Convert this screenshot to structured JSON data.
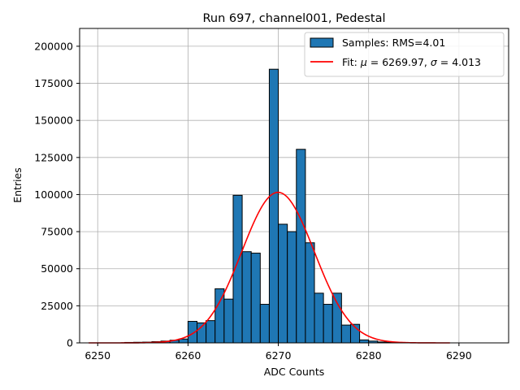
{
  "chart_data": {
    "type": "bar",
    "title": "Run 697, channel001, Pedestal",
    "xlabel": "ADC Counts",
    "ylabel": "Entries",
    "xlim": [
      6248,
      6295.5
    ],
    "ylim": [
      0,
      212000
    ],
    "xticks": [
      6250,
      6260,
      6270,
      6280,
      6290
    ],
    "yticks": [
      0,
      25000,
      50000,
      75000,
      100000,
      125000,
      150000,
      175000,
      200000
    ],
    "grid": true,
    "legend_position": "top-right",
    "bar_color": "#1f77b4",
    "fit_color": "#ff0000",
    "bin_width": 1,
    "series": [
      {
        "name": "Samples: RMS=4.01",
        "kind": "histogram",
        "bins": [
          {
            "x": 6253,
            "value": 300
          },
          {
            "x": 6254,
            "value": 400
          },
          {
            "x": 6255,
            "value": 500
          },
          {
            "x": 6256,
            "value": 800
          },
          {
            "x": 6257,
            "value": 1200
          },
          {
            "x": 6258,
            "value": 1800
          },
          {
            "x": 6259,
            "value": 2600
          },
          {
            "x": 6260,
            "value": 14500
          },
          {
            "x": 6261,
            "value": 13500
          },
          {
            "x": 6262,
            "value": 15000
          },
          {
            "x": 6263,
            "value": 36500
          },
          {
            "x": 6264,
            "value": 29500
          },
          {
            "x": 6265,
            "value": 99500
          },
          {
            "x": 6266,
            "value": 61500
          },
          {
            "x": 6267,
            "value": 60500
          },
          {
            "x": 6268,
            "value": 26000
          },
          {
            "x": 6269,
            "value": 184500
          },
          {
            "x": 6270,
            "value": 80000
          },
          {
            "x": 6271,
            "value": 75000
          },
          {
            "x": 6272,
            "value": 130500
          },
          {
            "x": 6273,
            "value": 67500
          },
          {
            "x": 6274,
            "value": 33500
          },
          {
            "x": 6275,
            "value": 26000
          },
          {
            "x": 6276,
            "value": 33500
          },
          {
            "x": 6277,
            "value": 12000
          },
          {
            "x": 6278,
            "value": 12500
          },
          {
            "x": 6279,
            "value": 2000
          },
          {
            "x": 6280,
            "value": 1200
          },
          {
            "x": 6281,
            "value": 600
          },
          {
            "x": 6282,
            "value": 300
          },
          {
            "x": 6283,
            "value": 200
          }
        ]
      },
      {
        "name": "Fit: μ = 6269.97, σ = 4.013",
        "legend_prefix": "Fit: ",
        "legend_mu_symbol": "μ",
        "legend_mid": " = 6269.97, ",
        "legend_sigma_symbol": "σ",
        "legend_suffix": " = 4.013",
        "kind": "gaussian",
        "mu": 6269.97,
        "sigma": 4.013,
        "amplitude": 101500,
        "x_range": [
          6249,
          6289
        ]
      }
    ]
  }
}
